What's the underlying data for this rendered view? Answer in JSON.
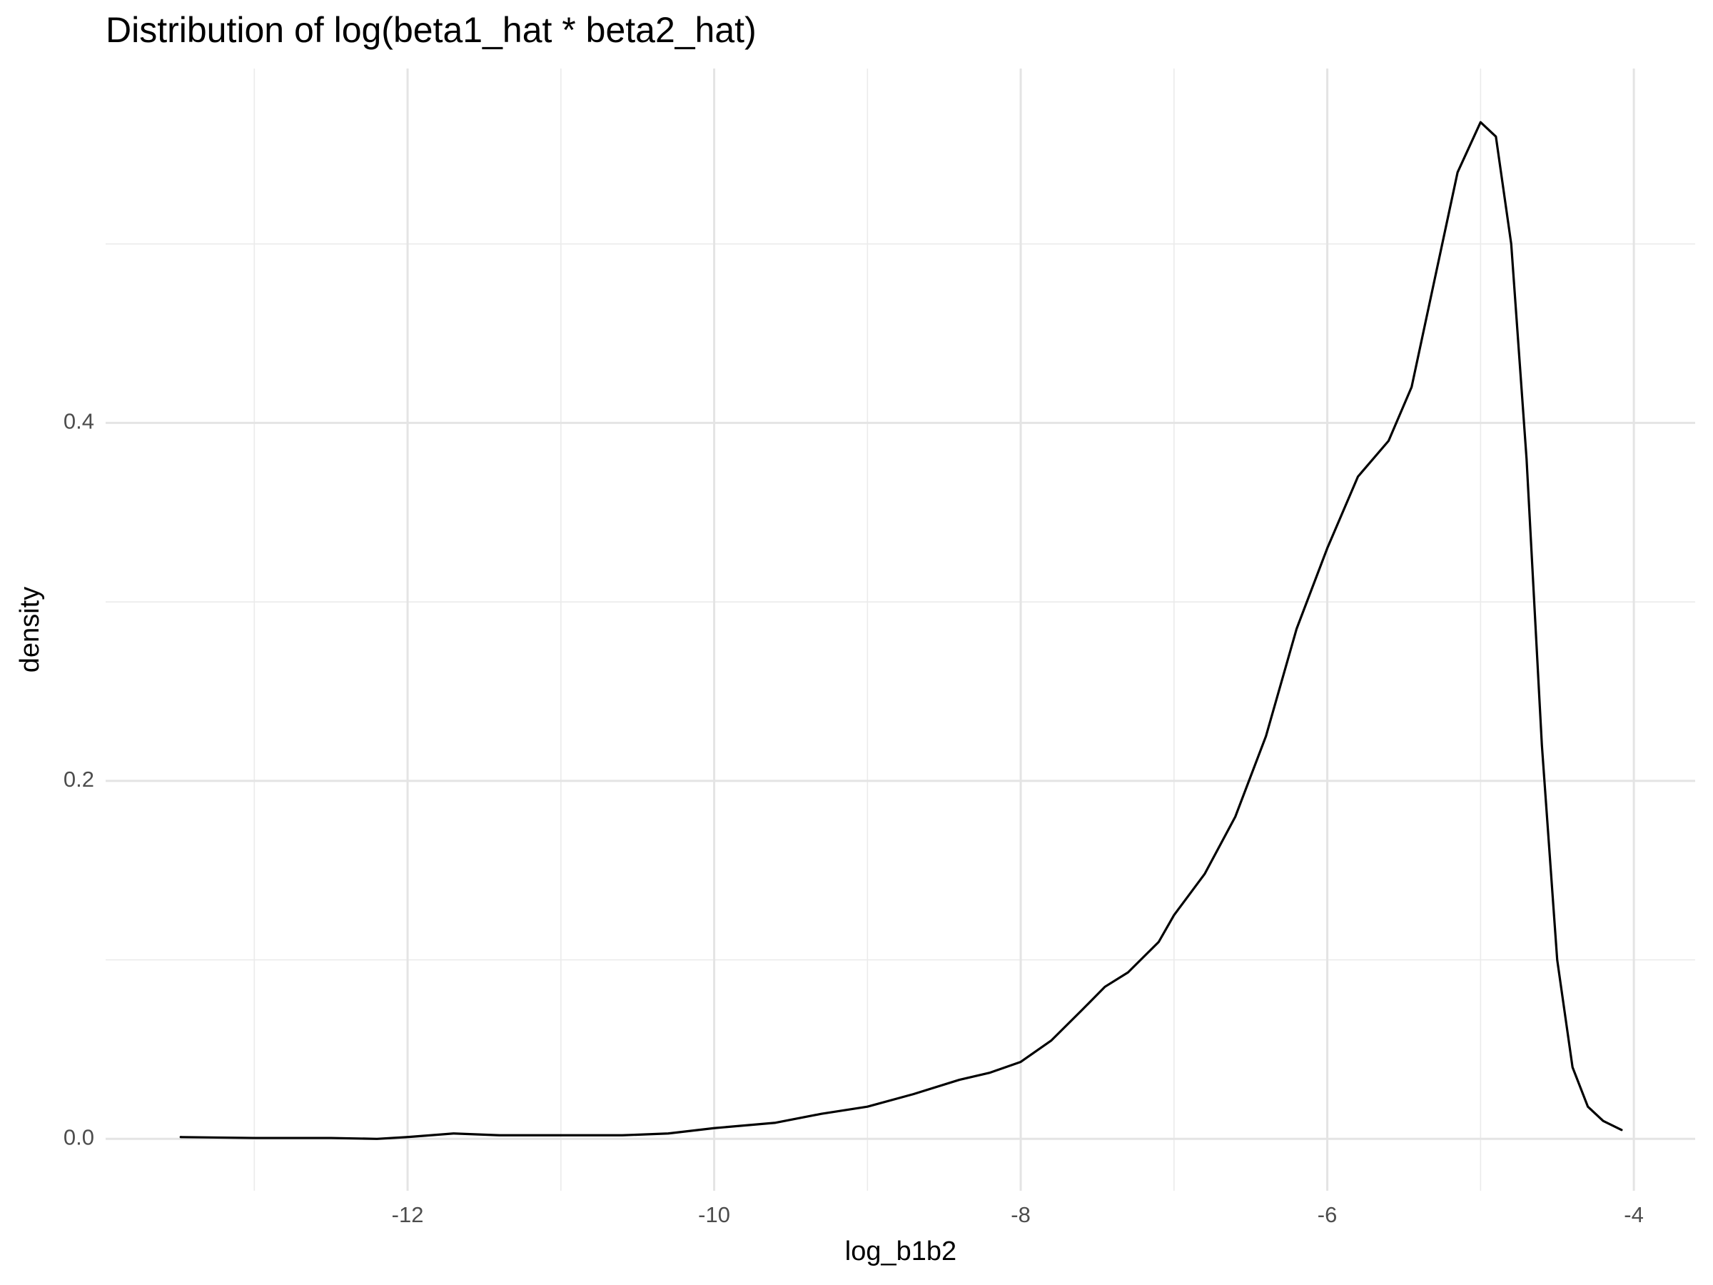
{
  "chart_data": {
    "type": "line",
    "title": "Distribution of log(beta1_hat * beta2_hat)",
    "x_label": "log_b1b2",
    "y_label": "density",
    "x": [
      -13.48,
      -13.0,
      -12.5,
      -12.2,
      -12.0,
      -11.7,
      -11.4,
      -11.0,
      -10.6,
      -10.3,
      -10.0,
      -9.6,
      -9.3,
      -9.0,
      -8.7,
      -8.4,
      -8.2,
      -8.0,
      -7.8,
      -7.6,
      -7.45,
      -7.3,
      -7.1,
      -7.0,
      -6.8,
      -6.6,
      -6.4,
      -6.2,
      -6.0,
      -5.8,
      -5.6,
      -5.45,
      -5.3,
      -5.15,
      -5.0,
      -4.9,
      -4.8,
      -4.7,
      -4.6,
      -4.5,
      -4.4,
      -4.3,
      -4.2,
      -4.08
    ],
    "series": [
      {
        "name": "density",
        "color": "#000000",
        "values": [
          0.001,
          0.0005,
          0.0005,
          0.0,
          0.001,
          0.003,
          0.002,
          0.002,
          0.002,
          0.003,
          0.006,
          0.009,
          0.014,
          0.018,
          0.025,
          0.033,
          0.037,
          0.043,
          0.055,
          0.072,
          0.085,
          0.093,
          0.11,
          0.125,
          0.148,
          0.18,
          0.225,
          0.285,
          0.33,
          0.37,
          0.39,
          0.42,
          0.48,
          0.54,
          0.568,
          0.56,
          0.5,
          0.38,
          0.22,
          0.1,
          0.04,
          0.018,
          0.01,
          0.005
        ]
      }
    ],
    "xlim": [
      -13.97,
      -3.6
    ],
    "xticks": [
      -12,
      -10,
      -8,
      -6,
      -4
    ],
    "ylim": [
      -0.029,
      0.598
    ],
    "yticks": [
      {
        "value": 0,
        "label": "0.0"
      },
      0.2,
      0.4
    ],
    "grid": true
  }
}
